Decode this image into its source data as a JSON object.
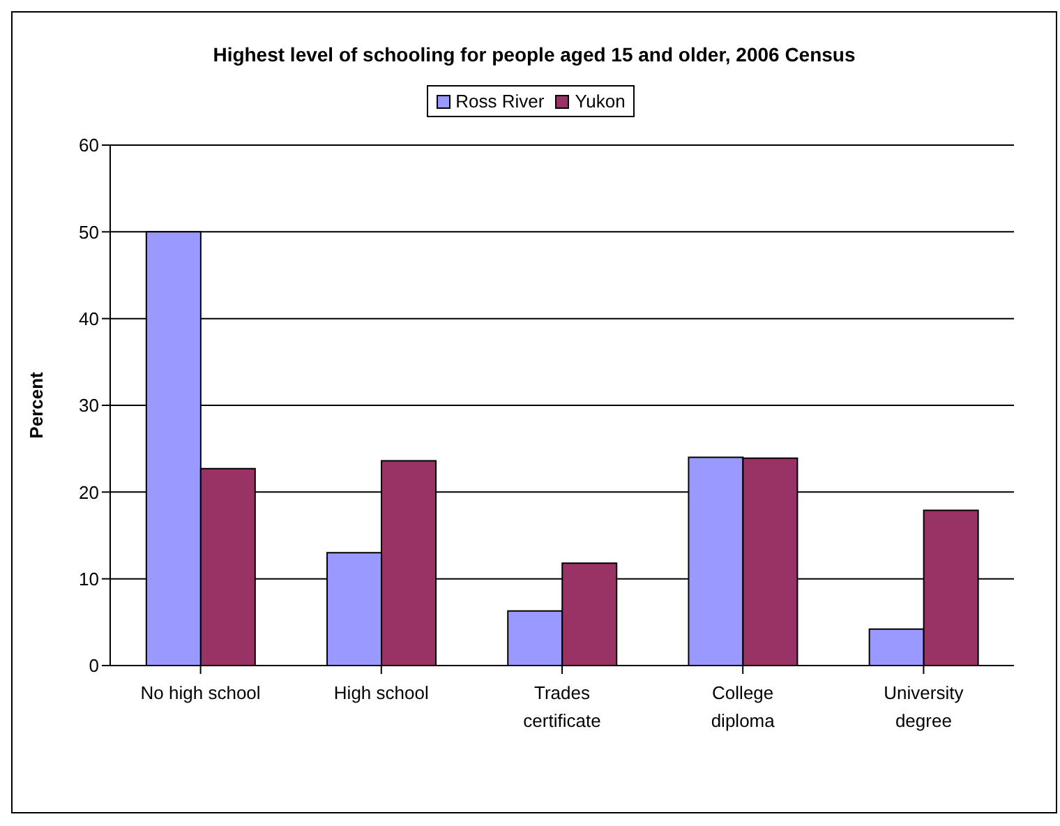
{
  "chart_data": {
    "type": "bar",
    "title": "Highest level of schooling for people aged 15 and older, 2006 Census",
    "ylabel": "Percent",
    "categories": [
      "No high school",
      "High school",
      "Trades certificate",
      "College diploma",
      "University degree"
    ],
    "series": [
      {
        "name": "Ross River",
        "color": "#9999ff",
        "values": [
          50,
          13,
          6.3,
          24,
          4.2
        ]
      },
      {
        "name": "Yukon",
        "color": "#993366",
        "values": [
          22.7,
          23.6,
          11.8,
          23.9,
          17.9
        ]
      }
    ],
    "ylim": [
      0,
      60
    ],
    "yticks": [
      0,
      10,
      20,
      30,
      40,
      50,
      60
    ],
    "grid": "y",
    "legend": "top"
  }
}
